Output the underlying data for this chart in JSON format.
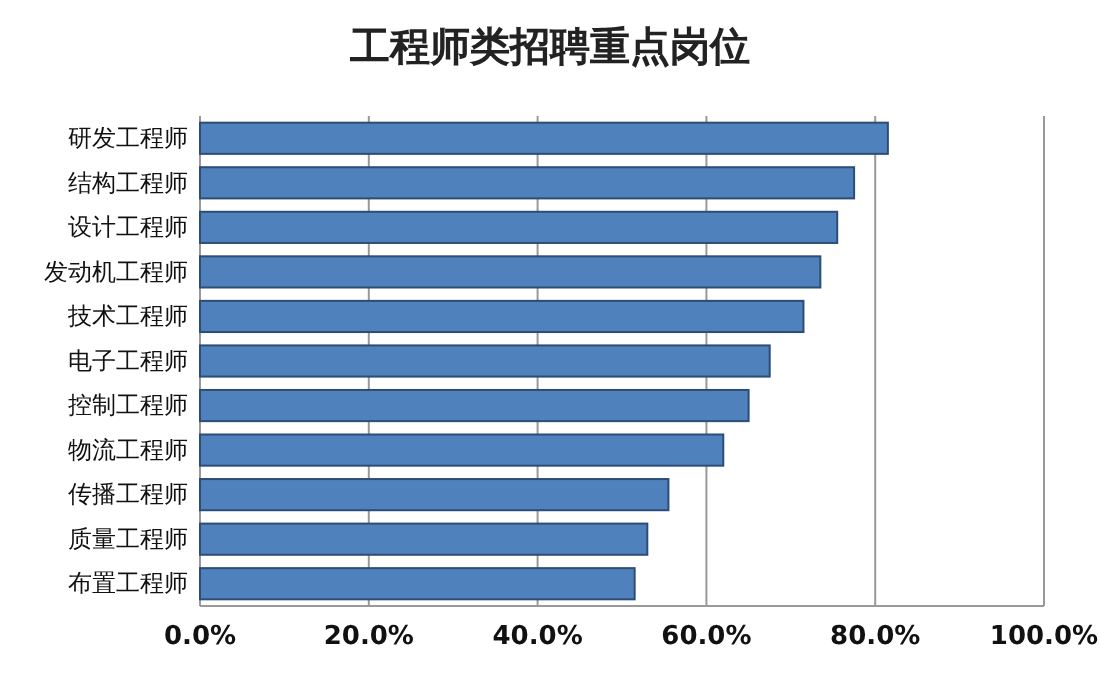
{
  "chart_data": {
    "type": "bar",
    "orientation": "horizontal",
    "title": "工程师类招聘重点岗位",
    "categories": [
      "研发工程师",
      "结构工程师",
      "设计工程师",
      "发动机工程师",
      "技术工程师",
      "电子工程师",
      "控制工程师",
      "物流工程师",
      "传播工程师",
      "质量工程师",
      "布置工程师"
    ],
    "values": [
      81.5,
      77.5,
      75.5,
      73.5,
      71.5,
      67.5,
      65,
      62,
      55.5,
      53,
      51.5
    ],
    "color": "#4f81bd",
    "xlim": [
      0,
      100
    ],
    "xticks": [
      {
        "value": 0,
        "label": "0.0%"
      },
      {
        "value": 20,
        "label": "20.0%"
      },
      {
        "value": 40,
        "label": "40.0%"
      },
      {
        "value": 60,
        "label": "60.0%"
      },
      {
        "value": 80,
        "label": "80.0%"
      },
      {
        "value": 100,
        "label": "100.0%"
      }
    ],
    "grid": "x"
  }
}
